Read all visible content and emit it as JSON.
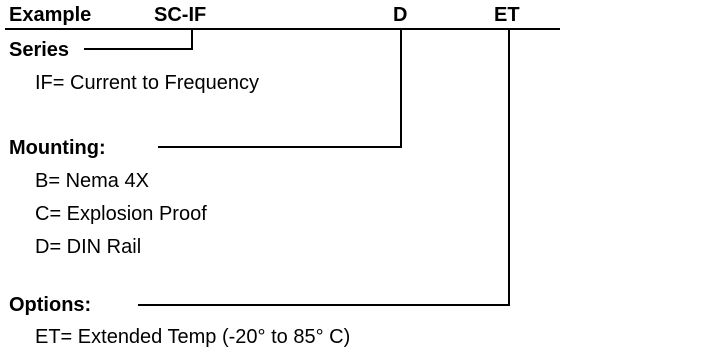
{
  "header": {
    "example_label": "Example",
    "model_code": "SC-IF",
    "mounting_code": "D",
    "options_code": "ET"
  },
  "series": {
    "heading": "Series",
    "items": [
      "IF= Current to Frequency"
    ]
  },
  "mounting": {
    "heading": "Mounting:",
    "items": [
      "B= Nema 4X",
      "C= Explosion Proof",
      "D= DIN Rail"
    ]
  },
  "options": {
    "heading": "Options:",
    "items": [
      "ET= Extended Temp (-20° to 85° C)"
    ]
  }
}
